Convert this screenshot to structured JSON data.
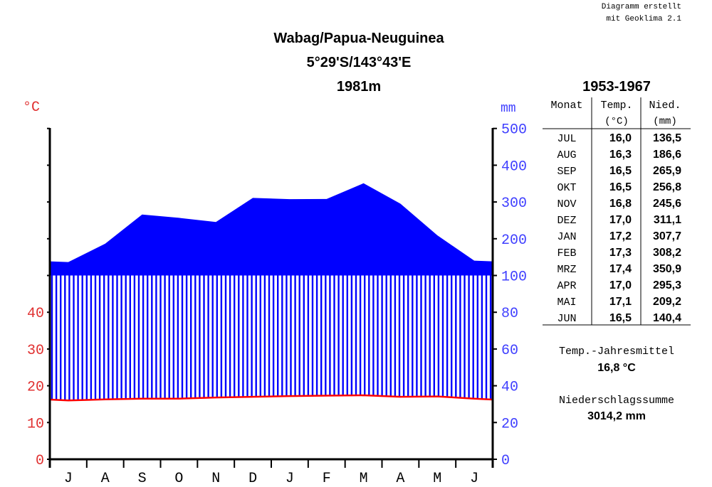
{
  "credit": [
    "Diagramm erstellt",
    "mit Geoklima 2.1"
  ],
  "title": [
    "Wabag/Papua-Neuguinea",
    "5°29'S/143°43'E",
    "1981m"
  ],
  "colors": {
    "temperature": "#ff0000",
    "precipitation": "#0000ff",
    "temp_axis_text": "#e03030",
    "precip_axis_text": "#4040ff"
  },
  "chart_data": {
    "type": "climate-diagram",
    "months": [
      "J",
      "A",
      "S",
      "O",
      "N",
      "D",
      "J",
      "F",
      "M",
      "A",
      "M",
      "J"
    ],
    "temp_axis": {
      "label": "°C",
      "ticks": [
        0,
        10,
        20,
        30,
        40
      ],
      "range": [
        0,
        50
      ]
    },
    "precip_axis": {
      "label": "mm",
      "ticks": [
        0,
        20,
        40,
        60,
        80,
        100,
        200,
        300,
        400,
        500
      ],
      "range": [
        0,
        500
      ],
      "scale_break": 100
    },
    "temperature": [
      16.0,
      16.3,
      16.5,
      16.5,
      16.8,
      17.0,
      17.2,
      17.3,
      17.4,
      17.0,
      17.1,
      16.5
    ],
    "precipitation": [
      136.5,
      186.6,
      265.9,
      256.8,
      245.6,
      311.1,
      307.7,
      308.2,
      350.9,
      295.3,
      209.2,
      140.4
    ]
  },
  "table": {
    "period": "1953-1967",
    "headers": [
      "Monat",
      "Temp.",
      "Nied."
    ],
    "units": [
      "(°C)",
      "(mm)"
    ],
    "rows": [
      [
        "JUL",
        "16,0",
        "136,5"
      ],
      [
        "AUG",
        "16,3",
        "186,6"
      ],
      [
        "SEP",
        "16,5",
        "265,9"
      ],
      [
        "OKT",
        "16,5",
        "256,8"
      ],
      [
        "NOV",
        "16,8",
        "245,6"
      ],
      [
        "DEZ",
        "17,0",
        "311,1"
      ],
      [
        "JAN",
        "17,2",
        "307,7"
      ],
      [
        "FEB",
        "17,3",
        "308,2"
      ],
      [
        "MRZ",
        "17,4",
        "350,9"
      ],
      [
        "APR",
        "17,0",
        "295,3"
      ],
      [
        "MAI",
        "17,1",
        "209,2"
      ],
      [
        "JUN",
        "16,5",
        "140,4"
      ]
    ]
  },
  "summary": {
    "temp_label": "Temp.-Jahresmittel",
    "temp_value": "16,8 °C",
    "precip_label": "Niederschlagssumme",
    "precip_value": "3014,2 mm"
  }
}
